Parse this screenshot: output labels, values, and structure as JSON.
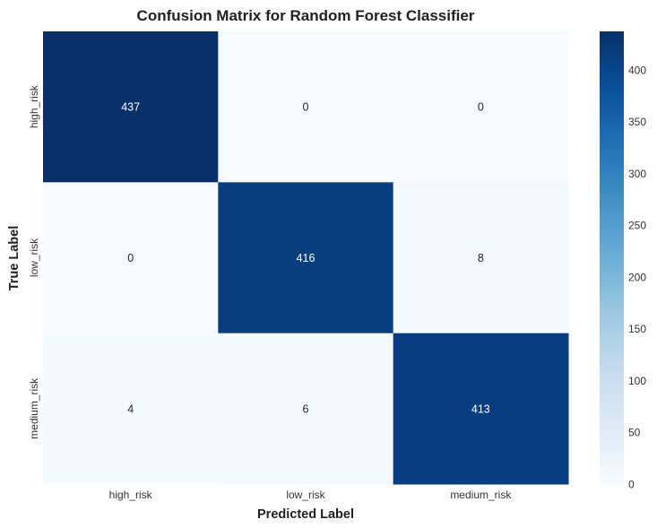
{
  "chart_data": {
    "type": "heatmap",
    "title": "Confusion Matrix for Random Forest Classifier",
    "xlabel": "Predicted Label",
    "ylabel": "True Label",
    "x_categories": [
      "high_risk",
      "low_risk",
      "medium_risk"
    ],
    "y_categories": [
      "high_risk",
      "low_risk",
      "medium_risk"
    ],
    "values": [
      [
        437,
        0,
        0
      ],
      [
        0,
        416,
        8
      ],
      [
        4,
        6,
        413
      ]
    ],
    "colormap": "Blues",
    "colorbar": {
      "min": 0,
      "max": 437,
      "ticks": [
        0,
        50,
        100,
        150,
        200,
        250,
        300,
        350,
        400
      ]
    },
    "colors": {
      "low": "#f7fbff",
      "high": "#08306b",
      "text_light": "#ffffff",
      "text_dark": "#262626"
    }
  }
}
